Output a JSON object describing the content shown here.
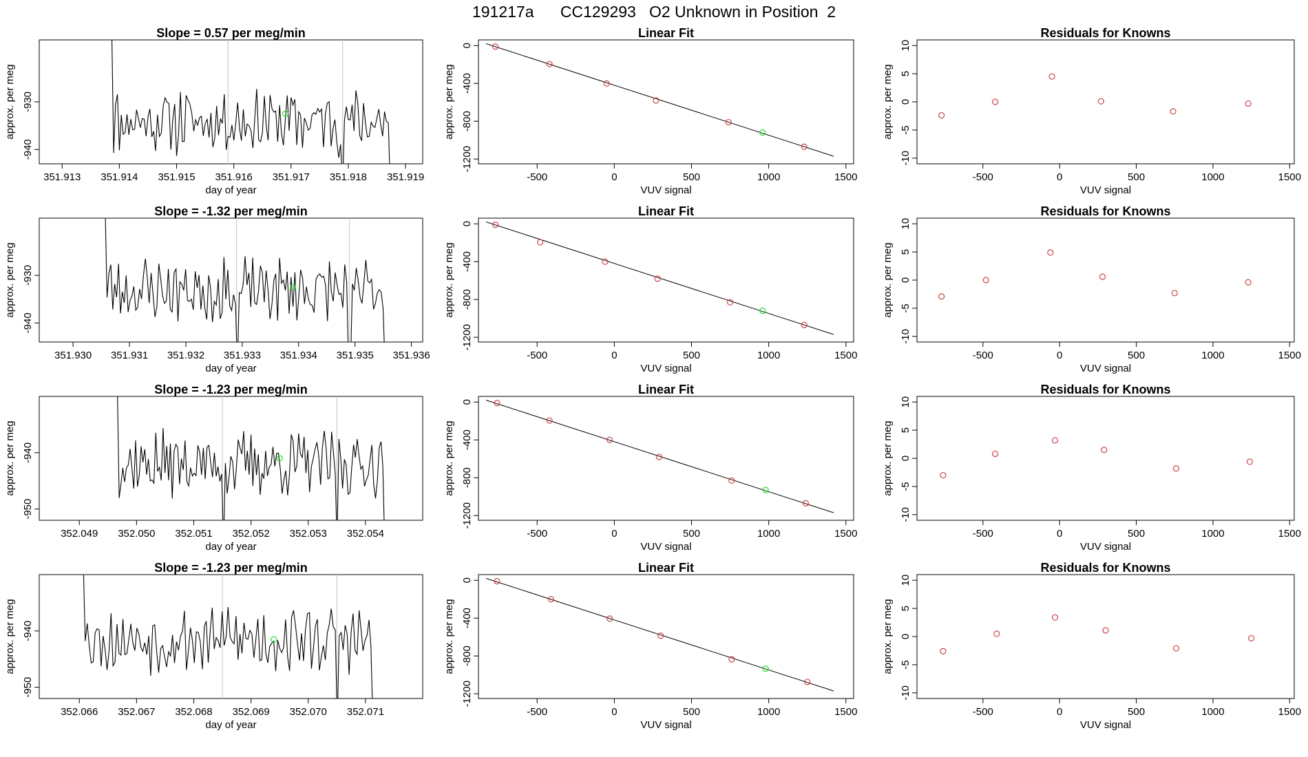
{
  "figure": {
    "title_run": "191217a",
    "title_cylinder": "CC129293",
    "title_desc": "O2 Unknown in Position  2"
  },
  "colors": {
    "ink": "#000000",
    "known": "#cc4444",
    "unknown": "#22dd22",
    "marker": "#d0d0d0"
  },
  "chart_data": [
    {
      "type": "line",
      "title": "Slope =  0.57  per meg/min",
      "xlabel": "day of year",
      "ylabel": "approx. per meg",
      "xlim": [
        351.9126,
        351.9193
      ],
      "ylim": [
        -943,
        -917
      ],
      "xticks": [
        351.913,
        351.914,
        351.915,
        351.916,
        351.917,
        351.918,
        351.919
      ],
      "xtick_labels": [
        "351.913",
        "351.914",
        "351.915",
        "351.916",
        "351.917",
        "351.918",
        "351.919"
      ],
      "yticks": [
        -930,
        -940
      ],
      "ytick_labels": [
        "-930",
        "-940"
      ],
      "vlines": [
        351.9159,
        351.9179
      ],
      "span": [
        351.9138,
        351.9188
      ],
      "ybase": -934,
      "seed": 11,
      "unknown_point": [
        351.9169,
        -932.5
      ]
    },
    {
      "type": "line",
      "title": "Slope =  -1.32  per meg/min",
      "xlabel": "day of year",
      "ylabel": "approx. per meg",
      "xlim": [
        351.9294,
        351.9362
      ],
      "ylim": [
        -944,
        -918
      ],
      "xticks": [
        351.93,
        351.931,
        351.932,
        351.933,
        351.934,
        351.935,
        351.936
      ],
      "xtick_labels": [
        "351.930",
        "351.931",
        "351.932",
        "351.933",
        "351.934",
        "351.935",
        "351.936"
      ],
      "yticks": [
        -930,
        -940
      ],
      "ytick_labels": [
        "-930",
        "-940"
      ],
      "vlines": [
        351.9329,
        351.9349
      ],
      "span": [
        351.9305,
        351.9356
      ],
      "ybase": -933,
      "seed": 23,
      "unknown_point": [
        351.9339,
        -932.5
      ]
    },
    {
      "type": "line",
      "title": "Slope =  -1.23  per meg/min",
      "xlabel": "day of year",
      "ylabel": "approx. per meg",
      "xlim": [
        352.0483,
        352.055
      ],
      "ylim": [
        -952,
        -930
      ],
      "xticks": [
        352.049,
        352.05,
        352.051,
        352.052,
        352.053,
        352.054
      ],
      "xtick_labels": [
        "352.049",
        "352.050",
        "352.051",
        "352.052",
        "352.053",
        "352.054"
      ],
      "yticks": [
        -940,
        -950
      ],
      "ytick_labels": [
        "-940",
        "-950"
      ],
      "vlines": [
        352.0515,
        352.0535
      ],
      "span": [
        352.0496,
        352.0544
      ],
      "ybase": -942,
      "seed": 37,
      "unknown_point": [
        352.0525,
        -941
      ]
    },
    {
      "type": "line",
      "title": "Slope =  -1.23  per meg/min",
      "xlabel": "day of year",
      "ylabel": "approx. per meg",
      "xlim": [
        352.0653,
        352.072
      ],
      "ylim": [
        -952,
        -930
      ],
      "xticks": [
        352.066,
        352.067,
        352.068,
        352.069,
        352.07,
        352.071
      ],
      "xtick_labels": [
        "352.066",
        "352.067",
        "352.068",
        "352.069",
        "352.070",
        "352.071"
      ],
      "yticks": [
        -940,
        -950
      ],
      "ytick_labels": [
        "-940",
        "-950"
      ],
      "vlines": [
        352.0685,
        352.0705
      ],
      "span": [
        352.066,
        352.0712
      ],
      "ybase": -941.5,
      "seed": 53,
      "unknown_point": [
        352.0694,
        -941.5
      ]
    },
    {
      "type": "scatter",
      "title": "Linear Fit",
      "xlabel": "VUV signal",
      "ylabel": "approx. per meg",
      "xlim": [
        -880,
        1550
      ],
      "ylim": [
        -1250,
        60
      ],
      "xticks": [
        -500,
        0,
        500,
        1000,
        1500
      ],
      "xtick_labels": [
        "-500",
        "0",
        "500",
        "1000",
        "1500"
      ],
      "yticks": [
        0,
        -400,
        -800,
        -1200
      ],
      "ytick_labels": [
        "0",
        "-400",
        "-800",
        "-1200"
      ],
      "known_x": [
        -770,
        -420,
        -50,
        270,
        740,
        1230
      ],
      "known_y": [
        -10,
        -195,
        -400,
        -580,
        -810,
        -1070
      ],
      "unknown_point": [
        960,
        -920
      ],
      "fit_line": [
        [
          -830,
          20
        ],
        [
          1420,
          -1170
        ]
      ]
    },
    {
      "type": "scatter",
      "title": "Linear Fit",
      "xlabel": "VUV signal",
      "ylabel": "approx. per meg",
      "xlim": [
        -880,
        1550
      ],
      "ylim": [
        -1250,
        60
      ],
      "xticks": [
        -500,
        0,
        500,
        1000,
        1500
      ],
      "xtick_labels": [
        "-500",
        "0",
        "500",
        "1000",
        "1500"
      ],
      "yticks": [
        0,
        -400,
        -800,
        -1200
      ],
      "ytick_labels": [
        "0",
        "-400",
        "-800",
        "-1200"
      ],
      "known_x": [
        -770,
        -480,
        -60,
        280,
        750,
        1230
      ],
      "known_y": [
        -10,
        -195,
        -400,
        -580,
        -830,
        -1070
      ],
      "unknown_point": [
        960,
        -920
      ],
      "fit_line": [
        [
          -830,
          20
        ],
        [
          1420,
          -1170
        ]
      ]
    },
    {
      "type": "scatter",
      "title": "Linear Fit",
      "xlabel": "VUV signal",
      "ylabel": "approx. per meg",
      "xlim": [
        -880,
        1550
      ],
      "ylim": [
        -1250,
        60
      ],
      "xticks": [
        -500,
        0,
        500,
        1000,
        1500
      ],
      "xtick_labels": [
        "-500",
        "0",
        "500",
        "1000",
        "1500"
      ],
      "yticks": [
        0,
        -400,
        -800,
        -1200
      ],
      "ytick_labels": [
        "0",
        "-400",
        "-800",
        "-1200"
      ],
      "known_x": [
        -760,
        -420,
        -30,
        290,
        760,
        1240
      ],
      "known_y": [
        -10,
        -195,
        -400,
        -580,
        -830,
        -1070
      ],
      "unknown_point": [
        980,
        -930
      ],
      "fit_line": [
        [
          -830,
          20
        ],
        [
          1420,
          -1170
        ]
      ]
    },
    {
      "type": "scatter",
      "title": "Linear Fit",
      "xlabel": "VUV signal",
      "ylabel": "approx. per meg",
      "xlim": [
        -880,
        1550
      ],
      "ylim": [
        -1250,
        60
      ],
      "xticks": [
        -500,
        0,
        500,
        1000,
        1500
      ],
      "xtick_labels": [
        "-500",
        "0",
        "500",
        "1000",
        "1500"
      ],
      "yticks": [
        0,
        -400,
        -800,
        -1200
      ],
      "ytick_labels": [
        "0",
        "-400",
        "-800",
        "-1200"
      ],
      "known_x": [
        -760,
        -410,
        -30,
        300,
        760,
        1250
      ],
      "known_y": [
        -10,
        -200,
        -405,
        -585,
        -835,
        -1075
      ],
      "unknown_point": [
        980,
        -935
      ],
      "fit_line": [
        [
          -830,
          20
        ],
        [
          1420,
          -1170
        ]
      ]
    },
    {
      "type": "scatter",
      "title": "Residuals for Knowns",
      "xlabel": "VUV signal",
      "ylabel": "approx. per meg",
      "xlim": [
        -930,
        1530
      ],
      "ylim": [
        -11,
        11
      ],
      "xticks": [
        -500,
        0,
        500,
        1000,
        1500
      ],
      "xtick_labels": [
        "-500",
        "0",
        "500",
        "1000",
        "1500"
      ],
      "yticks": [
        10,
        5,
        0,
        -5,
        -10
      ],
      "ytick_labels": [
        "10",
        "5",
        "0",
        "-5",
        "-10"
      ],
      "known_x": [
        -770,
        -420,
        -50,
        270,
        740,
        1230
      ],
      "known_y": [
        -2.4,
        0,
        4.5,
        0.1,
        -1.7,
        -0.3
      ]
    },
    {
      "type": "scatter",
      "title": "Residuals for Knowns",
      "xlabel": "VUV signal",
      "ylabel": "approx. per meg",
      "xlim": [
        -930,
        1530
      ],
      "ylim": [
        -11,
        11
      ],
      "xticks": [
        -500,
        0,
        500,
        1000,
        1500
      ],
      "xtick_labels": [
        "-500",
        "0",
        "500",
        "1000",
        "1500"
      ],
      "yticks": [
        10,
        5,
        0,
        -5,
        -10
      ],
      "ytick_labels": [
        "10",
        "5",
        "0",
        "-5",
        "-10"
      ],
      "known_x": [
        -770,
        -480,
        -60,
        280,
        750,
        1230
      ],
      "known_y": [
        -2.9,
        0,
        4.9,
        0.6,
        -2.3,
        -0.4
      ]
    },
    {
      "type": "scatter",
      "title": "Residuals for Knowns",
      "xlabel": "VUV signal",
      "ylabel": "approx. per meg",
      "xlim": [
        -930,
        1530
      ],
      "ylim": [
        -11,
        11
      ],
      "xticks": [
        -500,
        0,
        500,
        1000,
        1500
      ],
      "xtick_labels": [
        "-500",
        "0",
        "500",
        "1000",
        "1500"
      ],
      "yticks": [
        10,
        5,
        0,
        -5,
        -10
      ],
      "ytick_labels": [
        "10",
        "5",
        "0",
        "-5",
        "-10"
      ],
      "known_x": [
        -760,
        -420,
        -30,
        290,
        760,
        1240
      ],
      "known_y": [
        -3.0,
        0.8,
        3.2,
        1.5,
        -1.8,
        -0.6
      ]
    },
    {
      "type": "scatter",
      "title": "Residuals for Knowns",
      "xlabel": "VUV signal",
      "ylabel": "approx. per meg",
      "xlim": [
        -930,
        1530
      ],
      "ylim": [
        -11,
        11
      ],
      "xticks": [
        -500,
        0,
        500,
        1000,
        1500
      ],
      "xtick_labels": [
        "-500",
        "0",
        "500",
        "1000",
        "1500"
      ],
      "yticks": [
        10,
        5,
        0,
        -5,
        -10
      ],
      "ytick_labels": [
        "10",
        "5",
        "0",
        "-5",
        "-10"
      ],
      "known_x": [
        -760,
        -410,
        -30,
        300,
        760,
        1250
      ],
      "known_y": [
        -2.6,
        0.5,
        3.4,
        1.1,
        -2.1,
        -0.3
      ]
    }
  ]
}
